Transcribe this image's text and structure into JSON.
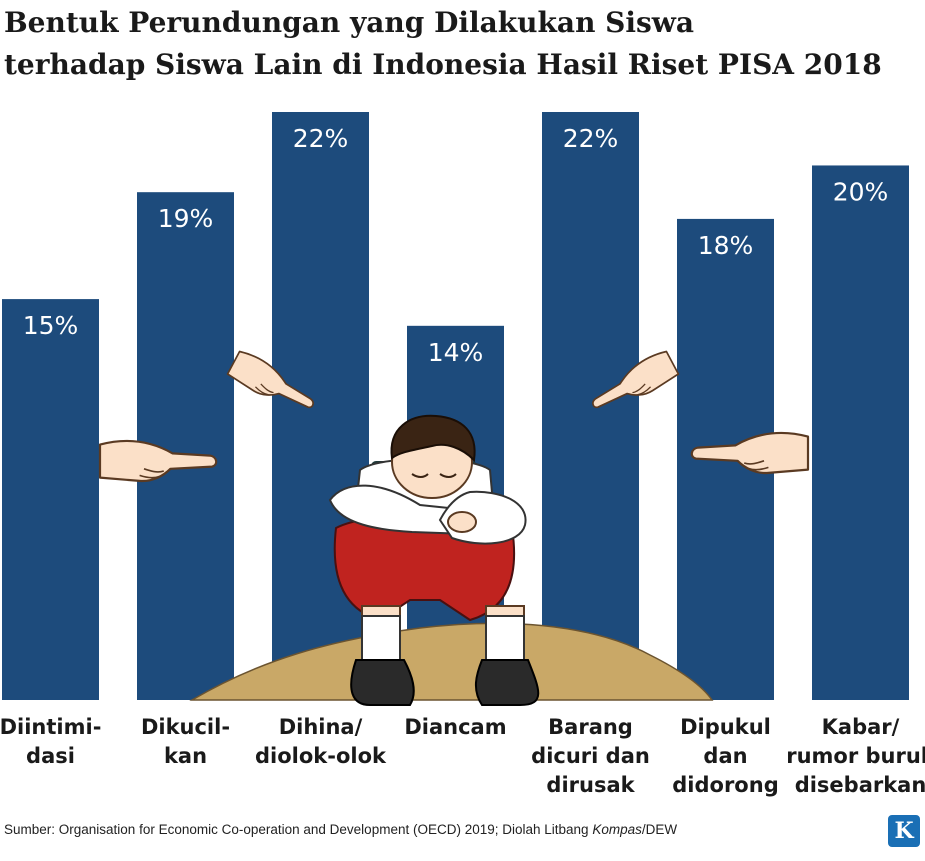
{
  "title_lines": [
    "Bentuk Perundungan yang Dilakukan Siswa",
    "terhadap Siswa Lain di Indonesia Hasil Riset PISA 2018"
  ],
  "source": {
    "prefix": "Sumber: Organisation for Economic Co-operation and Development (OECD) 2019; Diolah Litbang ",
    "italic": "Kompas",
    "suffix": "/DEW"
  },
  "logo": {
    "letter": "K",
    "color": "#1a6fb5"
  },
  "colors": {
    "bar": "#1d4b7c",
    "bar_label": "#ffffff",
    "sand": "#c9a867"
  },
  "icons": [
    "pointing-hand-icon",
    "crying-student-illustration"
  ],
  "chart_data": {
    "type": "bar",
    "title": "Bentuk Perundungan yang Dilakukan Siswa terhadap Siswa Lain di Indonesia Hasil Riset PISA 2018",
    "categories": [
      [
        "Diintimi-",
        "dasi"
      ],
      [
        "Dikucil-",
        "kan"
      ],
      [
        "Dihina/",
        "diolok-olok"
      ],
      [
        "Diancam"
      ],
      [
        "Barang",
        "dicuri dan",
        "dirusak"
      ],
      [
        "Dipukul",
        "dan",
        "didorong"
      ],
      [
        "Kabar/",
        "rumor buruk",
        "disebarkan"
      ]
    ],
    "values": [
      15,
      19,
      22,
      14,
      22,
      18,
      20
    ],
    "value_labels": [
      "15%",
      "19%",
      "22%",
      "14%",
      "22%",
      "18%",
      "20%"
    ],
    "unit": "%",
    "ylim": [
      0,
      22
    ],
    "xlabel": "",
    "ylabel": "",
    "grid": false,
    "legend": "none"
  }
}
